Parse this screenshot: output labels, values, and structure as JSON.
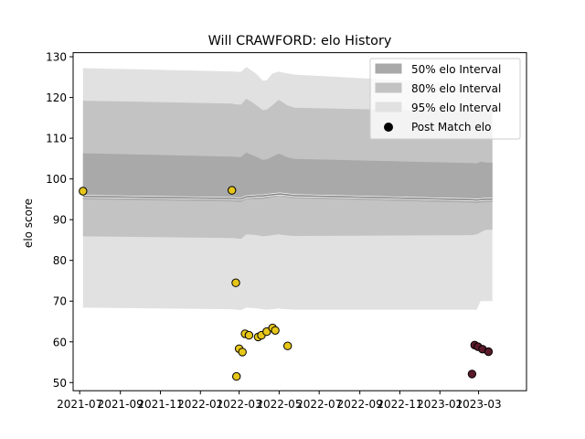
{
  "chart_data": {
    "type": "line",
    "title": "Will CRAWFORD: elo History",
    "xlabel": "",
    "ylabel": "elo score",
    "xlim": [
      "2021-06-21",
      "2023-05-13"
    ],
    "ylim": [
      48,
      131
    ],
    "x_ticks": [
      "2021-07",
      "2021-09",
      "2021-11",
      "2022-01",
      "2022-03",
      "2022-05",
      "2022-07",
      "2022-09",
      "2022-11",
      "2023-01",
      "2023-03"
    ],
    "y_ticks": [
      50,
      60,
      70,
      80,
      90,
      100,
      110,
      120,
      130
    ],
    "grid": false,
    "legend_position": "top-right",
    "legend": {
      "band50": "50% elo Interval",
      "band80": "80% elo Interval",
      "band95": "95% elo Interval",
      "points": "Post Match elo"
    },
    "colors": {
      "band50": "#a9a9a9",
      "band80": "#c3c3c3",
      "band95": "#e1e1e1",
      "mean_line": "#808080",
      "points_2022": "#e6c619",
      "points_2023": "#5a1a2a",
      "point_edge": "#000000"
    },
    "series": {
      "dates": [
        "2021-07-06",
        "2022-02-18",
        "2022-02-25",
        "2022-03-04",
        "2022-03-12",
        "2022-03-21",
        "2022-03-28",
        "2022-04-06",
        "2022-04-12",
        "2022-04-20",
        "2022-04-30",
        "2022-05-04",
        "2022-05-14",
        "2022-05-25",
        "2023-02-19",
        "2023-02-26",
        "2023-03-04",
        "2023-03-12",
        "2023-03-22"
      ],
      "mean": [
        95.7,
        95.2,
        95.1,
        95.1,
        95.6,
        95.7,
        95.8,
        95.8,
        96.0,
        96.1,
        96.3,
        96.3,
        96.1,
        95.9,
        94.9,
        94.8,
        94.9,
        95.0,
        95.0
      ],
      "band50_lower": [
        95.0,
        94.5,
        94.4,
        94.4,
        95.0,
        95.1,
        95.1,
        95.1,
        95.3,
        95.5,
        95.8,
        95.8,
        95.5,
        95.3,
        94.2,
        94.1,
        94.2,
        94.3,
        94.3
      ],
      "band50_upper": [
        106.3,
        105.5,
        105.4,
        105.4,
        106.5,
        105.8,
        105.4,
        104.7,
        104.8,
        105.4,
        106.2,
        106.0,
        105.3,
        104.9,
        103.9,
        103.8,
        104.2,
        104.0,
        104.0
      ],
      "band80_lower": [
        85.9,
        85.5,
        85.4,
        85.3,
        86.4,
        86.3,
        86.2,
        85.9,
        86.0,
        86.2,
        86.4,
        86.3,
        86.1,
        86.0,
        86.2,
        86.4,
        86.9,
        87.5,
        87.5
      ],
      "band80_upper": [
        119.2,
        118.5,
        118.3,
        118.3,
        119.7,
        118.8,
        118.0,
        116.9,
        117.0,
        118.0,
        119.4,
        119.1,
        118.0,
        117.5,
        116.5,
        116.5,
        116.6,
        116.6,
        116.6
      ],
      "band95_lower": [
        68.4,
        68.0,
        67.9,
        67.8,
        68.4,
        68.3,
        68.2,
        68.0,
        67.9,
        68.0,
        68.2,
        68.1,
        68.0,
        67.9,
        67.9,
        67.9,
        70.0,
        70.0,
        70.0
      ],
      "band95_upper": [
        127.2,
        126.4,
        126.3,
        126.3,
        127.5,
        126.5,
        125.7,
        124.1,
        124.2,
        125.8,
        126.4,
        126.2,
        125.9,
        125.6,
        123.3,
        123.3,
        123.3,
        123.3,
        123.3
      ]
    },
    "points": [
      {
        "date": "2021-07-06",
        "elo": 97.0,
        "group": "2022"
      },
      {
        "date": "2022-02-18",
        "elo": 97.2,
        "group": "2022"
      },
      {
        "date": "2022-02-24",
        "elo": 74.5,
        "group": "2022"
      },
      {
        "date": "2022-02-25",
        "elo": 51.5,
        "group": "2022"
      },
      {
        "date": "2022-03-01",
        "elo": 58.3,
        "group": "2022"
      },
      {
        "date": "2022-03-06",
        "elo": 57.5,
        "group": "2022"
      },
      {
        "date": "2022-03-10",
        "elo": 62.0,
        "group": "2022"
      },
      {
        "date": "2022-03-16",
        "elo": 61.6,
        "group": "2022"
      },
      {
        "date": "2022-03-30",
        "elo": 61.2,
        "group": "2022"
      },
      {
        "date": "2022-04-04",
        "elo": 61.6,
        "group": "2022"
      },
      {
        "date": "2022-04-12",
        "elo": 62.5,
        "group": "2022"
      },
      {
        "date": "2022-04-21",
        "elo": 63.4,
        "group": "2022"
      },
      {
        "date": "2022-04-25",
        "elo": 62.8,
        "group": "2022"
      },
      {
        "date": "2022-05-14",
        "elo": 59.0,
        "group": "2022"
      },
      {
        "date": "2023-02-19",
        "elo": 52.1,
        "group": "2023"
      },
      {
        "date": "2023-02-23",
        "elo": 59.2,
        "group": "2023"
      },
      {
        "date": "2023-02-28",
        "elo": 58.8,
        "group": "2023"
      },
      {
        "date": "2023-03-07",
        "elo": 58.2,
        "group": "2023"
      },
      {
        "date": "2023-03-16",
        "elo": 57.6,
        "group": "2023"
      }
    ]
  }
}
